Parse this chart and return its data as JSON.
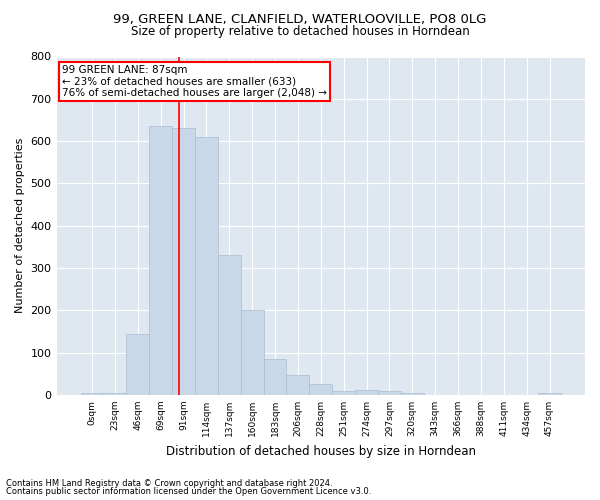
{
  "title_line1": "99, GREEN LANE, CLANFIELD, WATERLOOVILLE, PO8 0LG",
  "title_line2": "Size of property relative to detached houses in Horndean",
  "xlabel": "Distribution of detached houses by size in Horndean",
  "ylabel": "Number of detached properties",
  "bar_labels": [
    "0sqm",
    "23sqm",
    "46sqm",
    "69sqm",
    "91sqm",
    "114sqm",
    "137sqm",
    "160sqm",
    "183sqm",
    "206sqm",
    "228sqm",
    "251sqm",
    "274sqm",
    "297sqm",
    "320sqm",
    "343sqm",
    "366sqm",
    "388sqm",
    "411sqm",
    "434sqm",
    "457sqm"
  ],
  "bar_values": [
    5,
    5,
    143,
    635,
    630,
    610,
    330,
    200,
    85,
    48,
    25,
    10,
    12,
    10,
    5,
    0,
    0,
    0,
    0,
    0,
    5
  ],
  "bar_color": "#c8d8e8",
  "bar_edgecolor": "#aabcce",
  "bar_width": 1.0,
  "ylim": [
    0,
    800
  ],
  "yticks": [
    0,
    100,
    200,
    300,
    400,
    500,
    600,
    700,
    800
  ],
  "vline_x": 3.82,
  "vline_color": "red",
  "annotation_text": "99 GREEN LANE: 87sqm\n← 23% of detached houses are smaller (633)\n76% of semi-detached houses are larger (2,048) →",
  "annotation_box_color": "white",
  "annotation_box_edgecolor": "red",
  "footnote_line1": "Contains HM Land Registry data © Crown copyright and database right 2024.",
  "footnote_line2": "Contains public sector information licensed under the Open Government Licence v3.0.",
  "plot_bg_color": "#dfe8f0"
}
